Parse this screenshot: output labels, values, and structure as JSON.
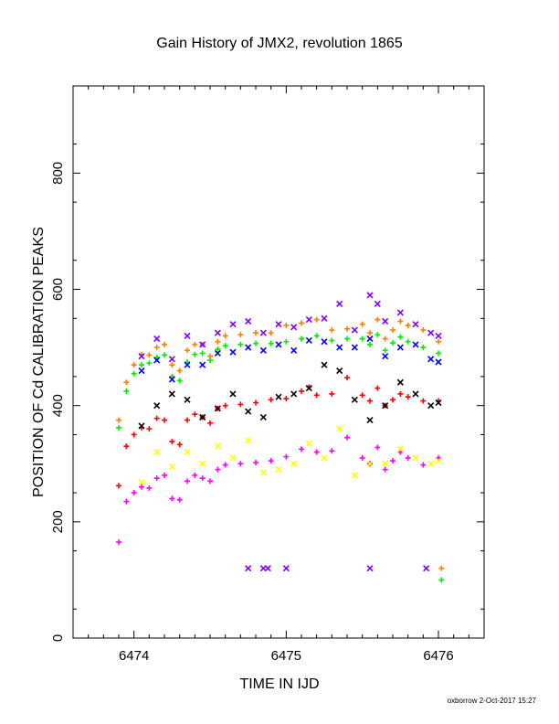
{
  "chart_data": {
    "type": "scatter",
    "title": "Gain History of JMX2, revolution 1865",
    "xlabel": "TIME IN IJD",
    "ylabel": "POSITION OF Cd CALIBRATION PEAKS",
    "xlim": [
      6473.6,
      6476.3
    ],
    "ylim": [
      0,
      950
    ],
    "xticks": [
      6474,
      6475,
      6476
    ],
    "yticks": [
      0,
      200,
      400,
      600,
      800
    ],
    "xtick_labels": [
      "6474",
      "6475",
      "6476"
    ],
    "ytick_labels": [
      "0",
      "200",
      "400",
      "600",
      "800"
    ],
    "footer": "oxborrow  2-Oct-2017 15:27",
    "series": [
      {
        "color": "#ff7f00",
        "marker": "plus",
        "x": [
          6473.9,
          6473.95,
          6474.0,
          6474.05,
          6474.1,
          6474.15,
          6474.2,
          6474.25,
          6474.3,
          6474.35,
          6474.4,
          6474.45,
          6474.5,
          6474.55,
          6474.6,
          6474.7,
          6474.8,
          6474.9,
          6475.0,
          6475.1,
          6475.2,
          6475.3,
          6475.4,
          6475.5,
          6475.55,
          6475.6,
          6475.65,
          6475.7,
          6475.75,
          6475.8,
          6475.9,
          6476.0
        ],
        "y": [
          375,
          440,
          470,
          488,
          487,
          500,
          505,
          470,
          460,
          495,
          505,
          505,
          485,
          510,
          520,
          522,
          525,
          525,
          538,
          542,
          548,
          530,
          532,
          540,
          525,
          548,
          515,
          530,
          545,
          538,
          530,
          510
        ]
      },
      {
        "color": "#00ee00",
        "marker": "plus",
        "x": [
          6473.9,
          6473.95,
          6474.0,
          6474.05,
          6474.1,
          6474.15,
          6474.2,
          6474.25,
          6474.3,
          6474.35,
          6474.4,
          6474.45,
          6474.5,
          6474.55,
          6474.6,
          6474.7,
          6474.8,
          6474.9,
          6475.0,
          6475.1,
          6475.2,
          6475.3,
          6475.4,
          6475.5,
          6475.55,
          6475.6,
          6475.65,
          6475.7,
          6475.75,
          6475.8,
          6475.9,
          6476.0
        ],
        "y": [
          362,
          425,
          455,
          470,
          473,
          483,
          487,
          450,
          443,
          475,
          488,
          490,
          478,
          497,
          503,
          505,
          507,
          507,
          510,
          515,
          520,
          512,
          515,
          515,
          505,
          522,
          495,
          508,
          518,
          510,
          500,
          490
        ]
      },
      {
        "color": "#ff0000",
        "marker": "plus",
        "x": [
          6473.9,
          6473.95,
          6474.0,
          6474.05,
          6474.1,
          6474.15,
          6474.2,
          6474.25,
          6474.3,
          6474.35,
          6474.4,
          6474.45,
          6474.5,
          6474.55,
          6474.6,
          6474.7,
          6474.8,
          6474.9,
          6475.0,
          6475.1,
          6475.15,
          6475.2,
          6475.3,
          6475.4,
          6475.5,
          6475.55,
          6475.6,
          6475.65,
          6475.7,
          6475.75,
          6475.8,
          6475.9,
          6476.0
        ],
        "y": [
          262,
          330,
          350,
          362,
          360,
          378,
          375,
          338,
          333,
          375,
          385,
          380,
          370,
          395,
          400,
          402,
          405,
          410,
          412,
          425,
          432,
          418,
          420,
          448,
          418,
          408,
          430,
          400,
          410,
          420,
          415,
          408,
          408
        ]
      },
      {
        "color": "#ff00ff",
        "marker": "plus",
        "x": [
          6473.9,
          6473.95,
          6474.0,
          6474.05,
          6474.1,
          6474.15,
          6474.2,
          6474.25,
          6474.3,
          6474.35,
          6474.4,
          6474.45,
          6474.5,
          6474.55,
          6474.6,
          6474.7,
          6474.8,
          6474.9,
          6475.0,
          6475.1,
          6475.2,
          6475.3,
          6475.4,
          6475.5,
          6475.55,
          6475.6,
          6475.65,
          6475.7,
          6475.75,
          6475.8,
          6475.9,
          6476.0
        ],
        "y": [
          165,
          235,
          250,
          260,
          258,
          275,
          280,
          240,
          238,
          270,
          280,
          275,
          270,
          290,
          298,
          300,
          302,
          305,
          312,
          325,
          320,
          322,
          345,
          310,
          300,
          328,
          290,
          305,
          320,
          310,
          298,
          310
        ]
      },
      {
        "color": "#7f00ff",
        "marker": "x",
        "x": [
          6474.05,
          6474.15,
          6474.25,
          6474.35,
          6474.45,
          6474.55,
          6474.65,
          6474.75,
          6474.85,
          6474.95,
          6475.05,
          6475.15,
          6475.25,
          6475.35,
          6475.45,
          6475.55,
          6475.6,
          6475.65,
          6475.75,
          6475.85,
          6475.95,
          6476.0
        ],
        "y": [
          485,
          515,
          480,
          520,
          505,
          525,
          540,
          545,
          525,
          540,
          535,
          548,
          550,
          575,
          530,
          590,
          575,
          545,
          560,
          540,
          525,
          520
        ]
      },
      {
        "color": "#0000ff",
        "marker": "x",
        "x": [
          6474.05,
          6474.15,
          6474.25,
          6474.35,
          6474.45,
          6474.55,
          6474.65,
          6474.75,
          6474.85,
          6474.95,
          6475.05,
          6475.15,
          6475.25,
          6475.35,
          6475.45,
          6475.55,
          6475.65,
          6475.75,
          6475.85,
          6475.95,
          6476.0
        ],
        "y": [
          460,
          478,
          445,
          470,
          470,
          490,
          492,
          500,
          495,
          505,
          495,
          512,
          510,
          500,
          500,
          515,
          485,
          500,
          505,
          480,
          475
        ]
      },
      {
        "color": "#000000",
        "marker": "x",
        "x": [
          6474.05,
          6474.15,
          6474.25,
          6474.35,
          6474.45,
          6474.55,
          6474.65,
          6474.75,
          6474.85,
          6474.95,
          6475.05,
          6475.15,
          6475.25,
          6475.35,
          6475.45,
          6475.55,
          6475.65,
          6475.75,
          6475.85,
          6475.95,
          6476.0
        ],
        "y": [
          365,
          400,
          420,
          410,
          380,
          395,
          420,
          390,
          380,
          415,
          420,
          430,
          470,
          460,
          410,
          375,
          400,
          440,
          420,
          400,
          405
        ]
      },
      {
        "color": "#ffff00",
        "marker": "x",
        "x": [
          6474.05,
          6474.15,
          6474.25,
          6474.35,
          6474.45,
          6474.55,
          6474.65,
          6474.75,
          6474.85,
          6474.95,
          6475.05,
          6475.15,
          6475.25,
          6475.35,
          6475.45,
          6475.55,
          6475.65,
          6475.75,
          6475.85,
          6475.95,
          6476.0
        ],
        "y": [
          268,
          320,
          295,
          320,
          300,
          330,
          310,
          340,
          285,
          290,
          300,
          335,
          310,
          360,
          280,
          300,
          300,
          325,
          310,
          300,
          305
        ]
      },
      {
        "color": "#7f00ff",
        "marker": "x",
        "x": [
          6474.75,
          6474.85,
          6474.88,
          6475.0,
          6475.55,
          6475.92
        ],
        "y": [
          120,
          120,
          120,
          120,
          120,
          120
        ]
      },
      {
        "color": "#ff7f00",
        "marker": "plus",
        "x": [
          6476.02
        ],
        "y": [
          120
        ]
      },
      {
        "color": "#00ee00",
        "marker": "plus",
        "x": [
          6476.02
        ],
        "y": [
          100
        ]
      }
    ]
  }
}
